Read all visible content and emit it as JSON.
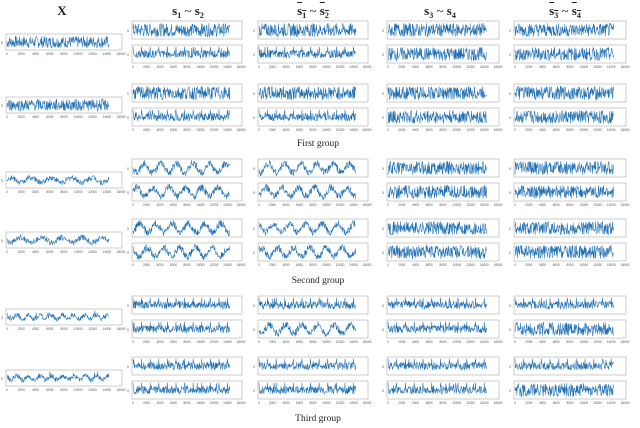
{
  "headers": [
    {
      "key": "x",
      "main": "X",
      "sub1": "",
      "sub2": "",
      "overline": false
    },
    {
      "key": "s12",
      "main": "s",
      "sub1": "1",
      "sub2": "2",
      "overline": false
    },
    {
      "key": "s12b",
      "main": "s",
      "sub1": "1",
      "sub2": "2",
      "overline": true
    },
    {
      "key": "s34",
      "main": "s",
      "sub1": "3",
      "sub2": "4",
      "overline": false
    },
    {
      "key": "s34b",
      "main": "s",
      "sub1": "3",
      "sub2": "4",
      "overline": true
    }
  ],
  "group_labels": [
    "First group",
    "Second group",
    "Third group"
  ],
  "x_ticks": [
    "0",
    "2000",
    "4000",
    "6000",
    "8000",
    "10000",
    "12000",
    "14000",
    "16000"
  ],
  "y_tick_label": "0",
  "line_color": "#1f6fb4",
  "chart_data": {
    "type": "line",
    "x_range": [
      0,
      16000
    ],
    "groups": [
      {
        "label": "First group",
        "rows": [
          {
            "X": "noise",
            "s1": "noise",
            "s2": "spiky",
            "s1_bar": "noise",
            "s2_bar": "spiky",
            "s3": "noise",
            "s4": "noise",
            "s3_bar": "noise",
            "s4_bar": "noise"
          },
          {
            "X": "noise",
            "s1": "noise",
            "s2": "spiky",
            "s1_bar": "noise",
            "s2_bar": "spiky",
            "s3": "noise",
            "s4": "noise",
            "s3_bar": "noise",
            "s4_bar": "noise"
          }
        ]
      },
      {
        "label": "Second group",
        "rows": [
          {
            "X": "slow-sine",
            "s1": "sine",
            "s2": "sine",
            "s1_bar": "sine",
            "s2_bar": "sine",
            "s3": "noise",
            "s4": "noise",
            "s3_bar": "noise",
            "s4_bar": "noise"
          },
          {
            "X": "slow-sine",
            "s1": "sine",
            "s2": "sine",
            "s1_bar": "sine",
            "s2_bar": "sine",
            "s3": "noise",
            "s4": "noise",
            "s3_bar": "noise",
            "s4_bar": "noise"
          }
        ]
      },
      {
        "label": "Third group",
        "rows": [
          {
            "X": "wavy",
            "s1": "spiky",
            "s2": "spiky",
            "s1_bar": "spiky",
            "s2_bar": "sine",
            "s3": "spiky",
            "s4": "spiky",
            "s3_bar": "spiky",
            "s4_bar": "noise"
          },
          {
            "X": "wavy",
            "s1": "spiky",
            "s2": "spiky",
            "s1_bar": "spiky",
            "s2_bar": "spiky",
            "s3": "spiky",
            "s4": "spiky",
            "s3_bar": "spiky",
            "s4_bar": "noise"
          }
        ]
      }
    ]
  }
}
